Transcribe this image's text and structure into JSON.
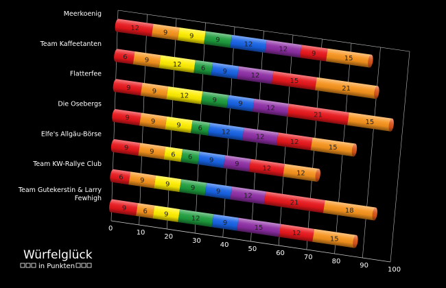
{
  "chart_data": {
    "type": "bar",
    "orientation": "horizontal",
    "stacked": true,
    "style": "3d-cylinder",
    "title": "Würfelglück",
    "subtitle": "in Punkten",
    "categories": [
      "Meerkoenig",
      "Team Kaffeetanten",
      "Flatterfee",
      "Die Osebergs",
      "Elfe's Allgäu-Börse",
      "Team KW-Rallye Club",
      "Team Gutekerstin & Larry Fewhigh"
    ],
    "series": [
      {
        "color": "#e8171c",
        "values": [
          12,
          6,
          9,
          9,
          9,
          6,
          9
        ]
      },
      {
        "color": "#f7941d",
        "values": [
          9,
          9,
          9,
          9,
          9,
          9,
          6
        ]
      },
      {
        "color": "#ffee00",
        "values": [
          9,
          12,
          12,
          9,
          6,
          9,
          9
        ]
      },
      {
        "color": "#1e9e3e",
        "values": [
          9,
          6,
          9,
          6,
          6,
          9,
          12
        ]
      },
      {
        "color": "#1763e6",
        "values": [
          12,
          9,
          9,
          12,
          9,
          9,
          9
        ]
      },
      {
        "color": "#8e2ea5",
        "values": [
          12,
          12,
          12,
          12,
          9,
          12,
          15
        ]
      },
      {
        "color": "#e8171c",
        "values": [
          9,
          15,
          21,
          12,
          12,
          21,
          12
        ]
      },
      {
        "color": "#f7941d",
        "values": [
          15,
          21,
          15,
          15,
          12,
          18,
          15
        ]
      }
    ],
    "xlim": [
      0,
      100
    ],
    "xticks": [
      0,
      10,
      20,
      30,
      40,
      50,
      60,
      70,
      80,
      90,
      100
    ],
    "grid": true,
    "legend": "none"
  }
}
